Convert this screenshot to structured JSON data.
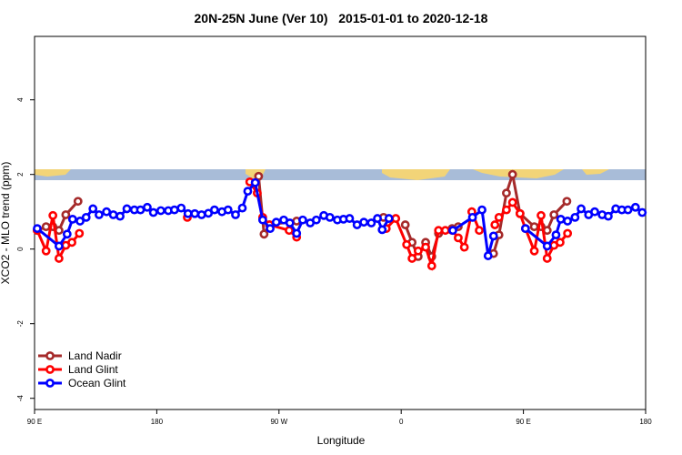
{
  "chart_data": {
    "type": "line",
    "title": "20N-25N June (Ver 10)   2015-01-01 to 2020-12-18",
    "x_label": "Longitude",
    "y_label": "XCO2 - MLO trend (ppm)",
    "xlim": [
      90,
      540
    ],
    "ylim": [
      -4.3,
      5.7
    ],
    "xticks": [
      {
        "value": 90,
        "label": "90 E"
      },
      {
        "value": 180,
        "label": "180"
      },
      {
        "value": 270,
        "label": "90 W"
      },
      {
        "value": 360,
        "label": "0"
      },
      {
        "value": 450,
        "label": "90 E"
      },
      {
        "value": 540,
        "label": "180"
      }
    ],
    "yticks": [
      -4,
      -2,
      0,
      2,
      4
    ],
    "legend": "bottom-left",
    "series": [
      {
        "name": "Land Nadir",
        "color": "#a52a2a",
        "x": [
          92,
          98.5,
          103.5,
          108,
          113,
          122,
          null,
          255,
          259,
          263,
          283,
          null,
          347,
          null,
          363,
          368,
          372.5,
          378,
          382.5,
          387.5,
          397.5,
          402,
          null,
          428,
          432,
          437.5,
          442,
          447.5,
          458,
          463,
          467.5,
          472.5,
          482
        ],
        "values": [
          0.5,
          0.6,
          0.6,
          0.5,
          0.92,
          1.28,
          null,
          1.95,
          0.4,
          0.65,
          0.75,
          null,
          0.85,
          null,
          0.65,
          0.18,
          -0.2,
          0.18,
          -0.2,
          0.42,
          0.55,
          0.6,
          null,
          -0.12,
          0.38,
          1.5,
          2.0,
          0.95,
          0.6,
          0.6,
          0.5,
          0.92,
          1.28
        ]
      },
      {
        "name": "Land Glint",
        "color": "#ff0000",
        "x": [
          92,
          98.5,
          103.5,
          108,
          113,
          117.5,
          123,
          null,
          202.5,
          null,
          248.5,
          254,
          258,
          263,
          277.5,
          283,
          null,
          349,
          356,
          364,
          368,
          372.5,
          378,
          382.5,
          387.5,
          392.5,
          397.5,
          402,
          406.5,
          412,
          417.5,
          null,
          429,
          432,
          437.5,
          442,
          447.5,
          451.5,
          458,
          463,
          467.5,
          472.5,
          477,
          482.5
        ],
        "values": [
          0.5,
          -0.05,
          0.9,
          -0.25,
          0.1,
          0.18,
          0.42,
          null,
          0.85,
          null,
          1.8,
          1.5,
          0.85,
          0.65,
          0.5,
          0.32,
          null,
          0.55,
          0.82,
          0.12,
          -0.25,
          -0.05,
          0.05,
          -0.45,
          0.5,
          0.5,
          0.5,
          0.3,
          0.05,
          1.0,
          0.5,
          null,
          0.65,
          0.85,
          1.05,
          1.25,
          0.95,
          0.55,
          -0.05,
          0.9,
          -0.25,
          0.1,
          0.18,
          0.42
        ]
      },
      {
        "name": "Ocean Glint",
        "color": "#0000ff",
        "x": [
          92,
          108,
          114,
          118,
          123.5,
          128,
          133,
          137.5,
          143,
          148,
          153,
          158,
          163.5,
          168,
          173,
          177.5,
          183,
          188.5,
          193,
          198,
          203,
          208,
          213,
          218,
          222.5,
          228,
          232.5,
          238,
          243,
          247,
          252.5,
          258,
          263.5,
          268,
          273.5,
          278,
          283,
          287.5,
          293,
          297.5,
          303,
          307.5,
          313,
          317.5,
          322,
          327.5,
          332.5,
          338,
          342.5,
          346,
          351,
          null,
          398,
          412.5,
          419.5,
          424,
          428,
          null,
          451.5,
          467.5,
          474,
          477.5,
          482.5,
          488,
          492.5,
          498,
          502.5,
          508,
          512.5,
          518,
          522.5,
          527,
          532.5,
          537.5
        ],
        "values": [
          0.55,
          0.08,
          0.4,
          0.8,
          0.75,
          0.85,
          1.08,
          0.92,
          1.0,
          0.92,
          0.88,
          1.08,
          1.05,
          1.05,
          1.12,
          0.98,
          1.03,
          1.03,
          1.05,
          1.1,
          0.95,
          0.95,
          0.92,
          0.96,
          1.05,
          1.0,
          1.05,
          0.92,
          1.1,
          1.55,
          1.78,
          0.78,
          0.55,
          0.72,
          0.78,
          0.7,
          0.42,
          0.78,
          0.7,
          0.78,
          0.9,
          0.85,
          0.78,
          0.8,
          0.82,
          0.65,
          0.72,
          0.7,
          0.82,
          0.52,
          0.82,
          null,
          0.5,
          0.85,
          1.05,
          -0.18,
          0.35,
          null,
          0.55,
          0.08,
          0.38,
          0.8,
          0.75,
          0.85,
          1.08,
          0.92,
          1.0,
          0.92,
          0.88,
          1.08,
          1.05,
          1.05,
          1.12,
          0.98
        ]
      }
    ]
  }
}
